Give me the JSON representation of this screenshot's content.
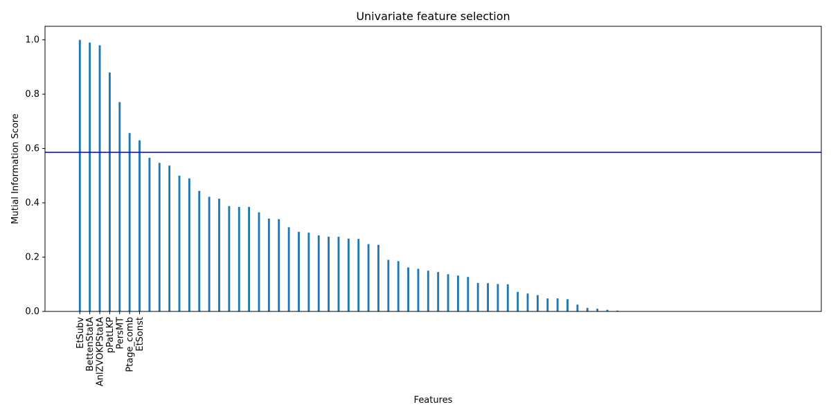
{
  "chart_data": {
    "type": "bar",
    "title": "Univariate feature selection",
    "xlabel": "Features",
    "ylabel": "Mutial Information Score",
    "ylim": [
      0,
      1.05
    ],
    "xlim": [
      -3.5,
      74.5
    ],
    "yticks": [
      0.0,
      0.2,
      0.4,
      0.6,
      0.8,
      1.0
    ],
    "ytick_labels": [
      "0.0",
      "0.2",
      "0.4",
      "0.6",
      "0.8",
      "1.0"
    ],
    "grid": false,
    "bar_color": "#1f77b4",
    "threshold": {
      "value": 0.586,
      "color": "#0000cd"
    },
    "tick_labels": [
      "EtSubv",
      "BettenStatA",
      "AnlZVOKPStatA",
      "pPatLKP",
      "PersMT",
      "Ptage_comb",
      "EtSonst"
    ],
    "values": [
      1.0,
      0.99,
      0.98,
      0.88,
      0.771,
      0.657,
      0.63,
      0.566,
      0.547,
      0.537,
      0.5,
      0.49,
      0.444,
      0.422,
      0.415,
      0.388,
      0.385,
      0.385,
      0.365,
      0.342,
      0.34,
      0.31,
      0.293,
      0.29,
      0.28,
      0.275,
      0.275,
      0.268,
      0.267,
      0.248,
      0.245,
      0.19,
      0.185,
      0.162,
      0.157,
      0.15,
      0.145,
      0.137,
      0.132,
      0.127,
      0.105,
      0.104,
      0.101,
      0.1,
      0.072,
      0.066,
      0.06,
      0.048,
      0.048,
      0.045,
      0.025,
      0.013,
      0.01,
      0.006,
      0.003
    ]
  }
}
